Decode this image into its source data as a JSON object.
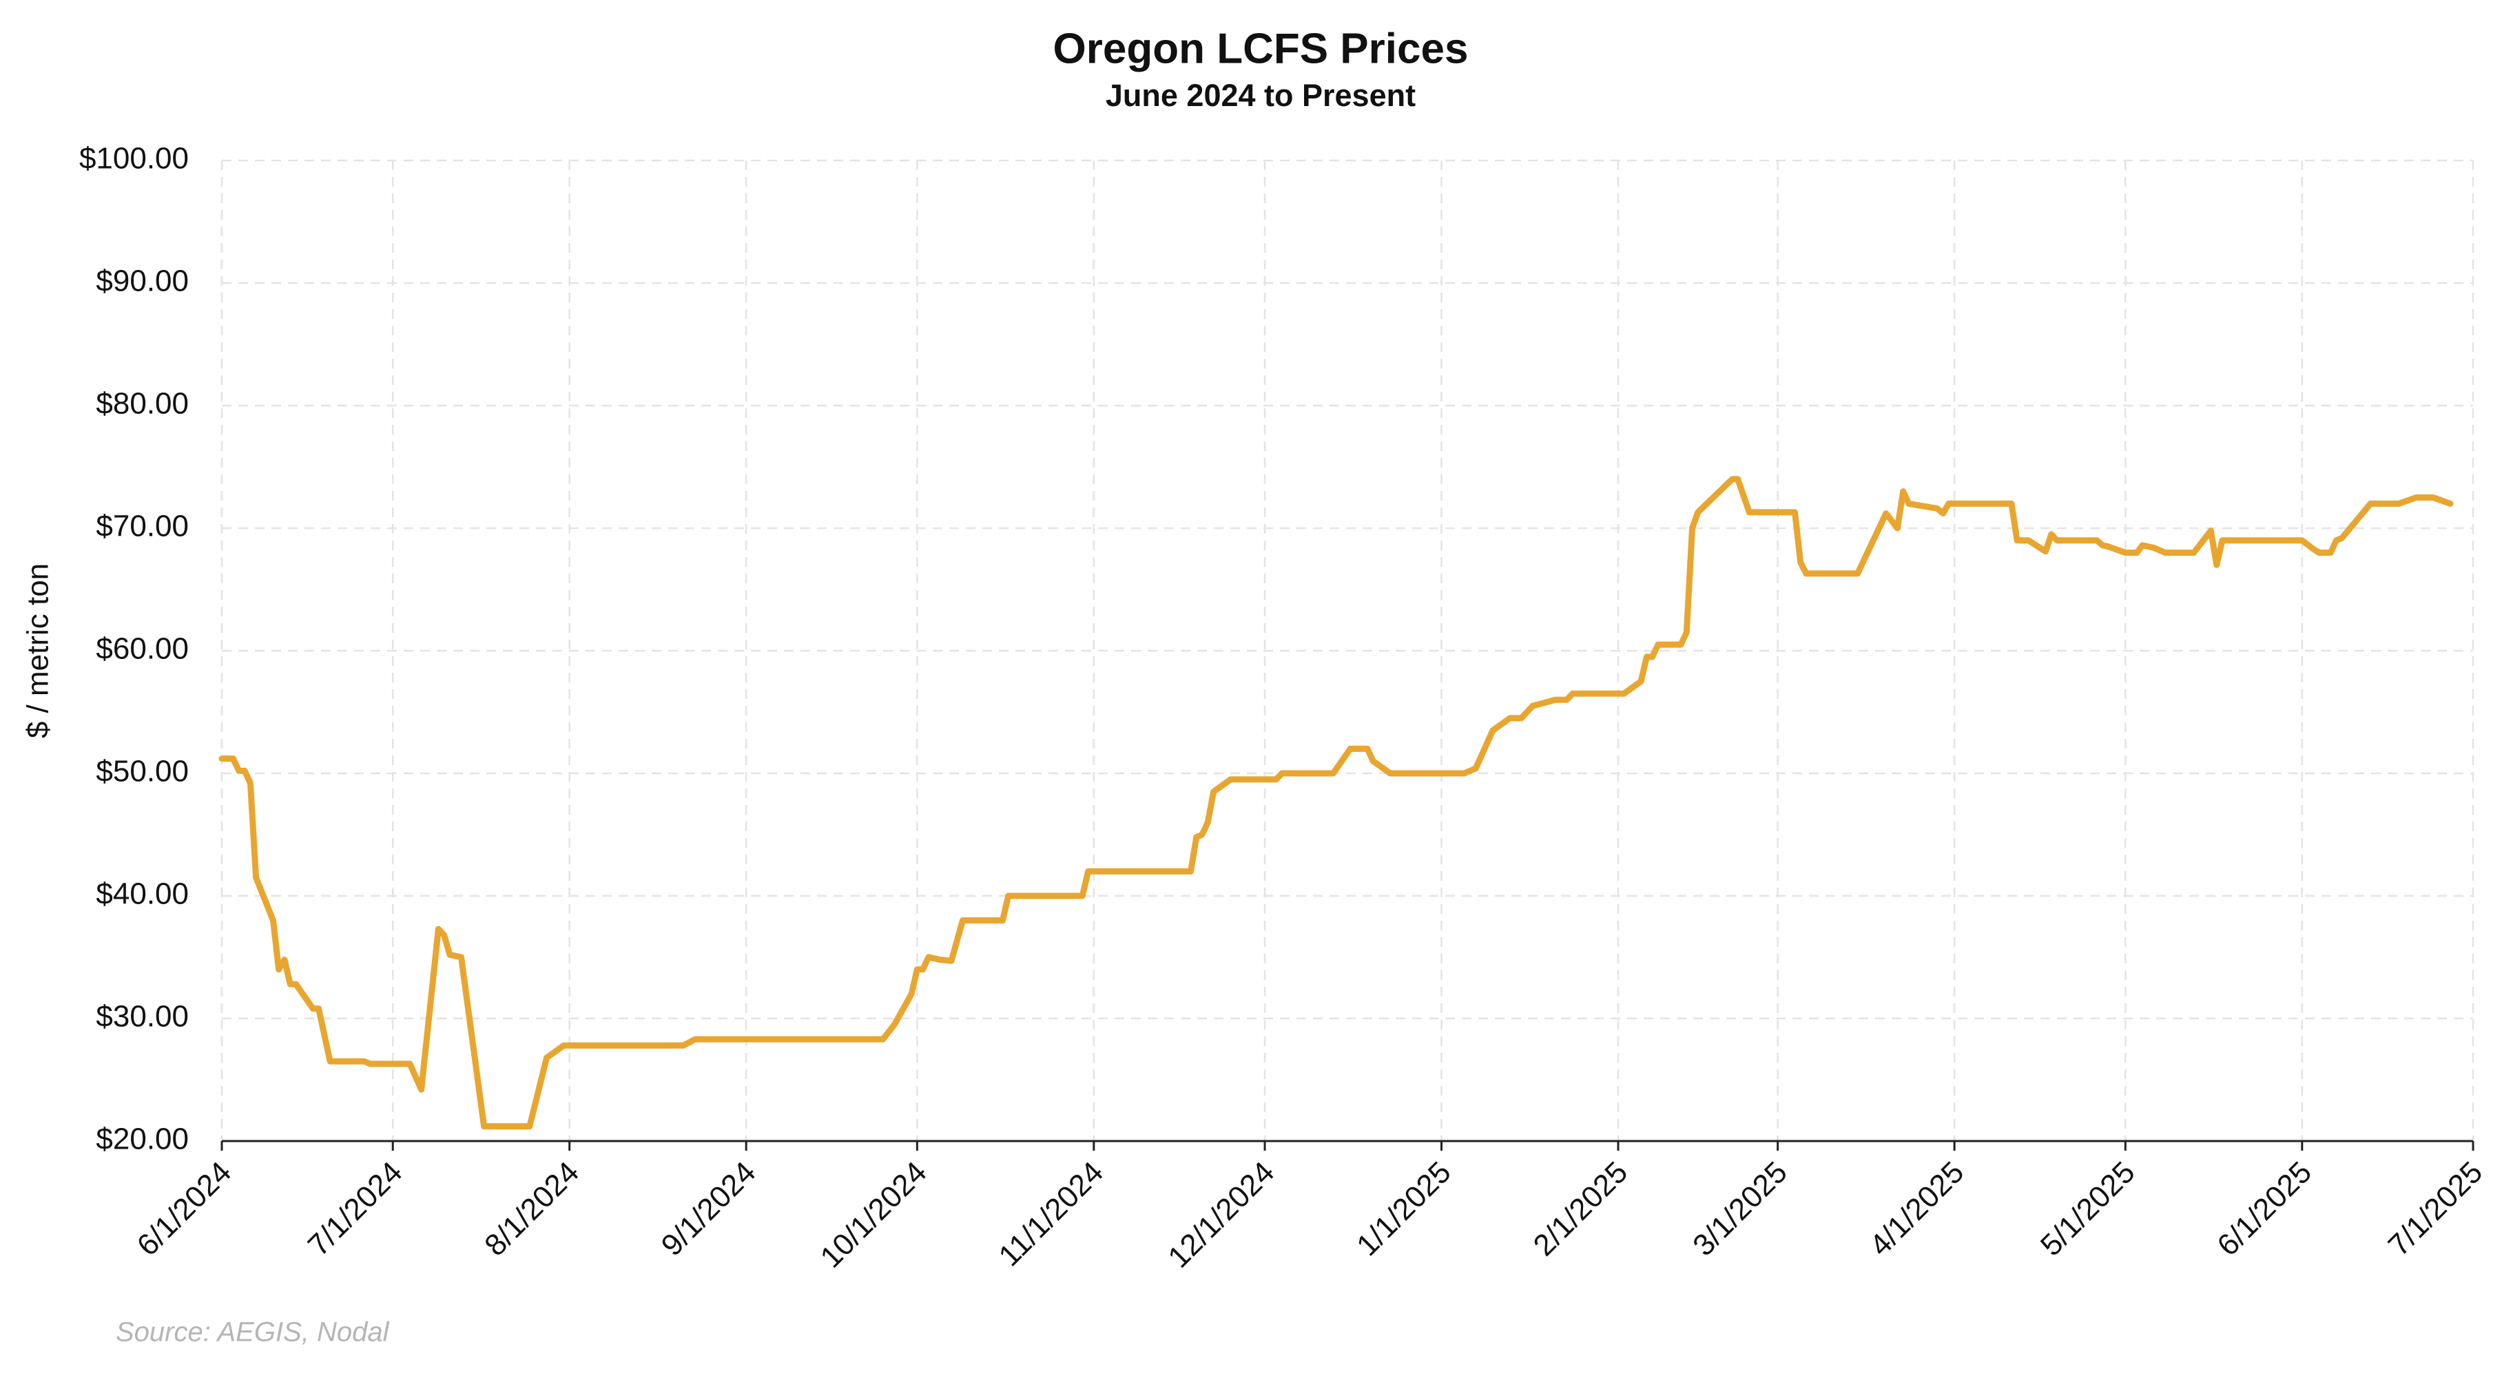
{
  "chart_data": {
    "type": "line",
    "title": "Oregon LCFS Prices",
    "subtitle": "June 2024 to Present",
    "y_label": "$ / metric ton",
    "source": "Source: AEGIS, Nodal",
    "color": "#e8a630",
    "grid": true,
    "xlim": [
      "6/1/2024",
      "7/1/2025"
    ],
    "xticks": [
      "6/1/2024",
      "7/1/2024",
      "8/1/2024",
      "9/1/2024",
      "10/1/2024",
      "11/1/2024",
      "12/1/2024",
      "1/1/2025",
      "2/1/2025",
      "3/1/2025",
      "4/1/2025",
      "5/1/2025",
      "6/1/2025",
      "7/1/2025"
    ],
    "ylim": [
      20,
      100
    ],
    "yticks": [
      {
        "value": 20,
        "label": "$20.00"
      },
      {
        "value": 30,
        "label": "$30.00"
      },
      {
        "value": 40,
        "label": "$40.00"
      },
      {
        "value": 50,
        "label": "$50.00"
      },
      {
        "value": 60,
        "label": "$60.00"
      },
      {
        "value": 70,
        "label": "$70.00"
      },
      {
        "value": 80,
        "label": "$80.00"
      },
      {
        "value": 90,
        "label": "$90.00"
      },
      {
        "value": 100,
        "label": "$100.00"
      }
    ],
    "x": [
      "6/1/2024",
      "6/3/2024",
      "6/4/2024",
      "6/5/2024",
      "6/6/2024",
      "6/7/2024",
      "6/10/2024",
      "6/11/2024",
      "6/12/2024",
      "6/13/2024",
      "6/14/2024",
      "6/17/2024",
      "6/18/2024",
      "6/20/2024",
      "6/26/2024",
      "6/27/2024",
      "7/4/2024",
      "7/6/2024",
      "7/9/2024",
      "7/10/2024",
      "7/11/2024",
      "7/13/2024",
      "7/17/2024",
      "7/25/2024",
      "7/28/2024",
      "7/31/2024",
      "8/21/2024",
      "8/23/2024",
      "9/25/2024",
      "9/27/2024",
      "9/30/2024",
      "10/1/2024",
      "10/2/2024",
      "10/3/2024",
      "10/5/2024",
      "10/7/2024",
      "10/9/2024",
      "10/16/2024",
      "10/17/2024",
      "10/30/2024",
      "10/31/2024",
      "11/18/2024",
      "11/19/2024",
      "11/20/2024",
      "11/21/2024",
      "11/22/2024",
      "11/25/2024",
      "12/3/2024",
      "12/4/2024",
      "12/13/2024",
      "12/16/2024",
      "12/19/2024",
      "12/20/2024",
      "12/23/2024",
      "1/5/2025",
      "1/7/2025",
      "1/10/2025",
      "1/13/2025",
      "1/15/2025",
      "1/17/2025",
      "1/21/2025",
      "1/23/2025",
      "1/24/2025",
      "2/2/2025",
      "2/5/2025",
      "2/6/2025",
      "2/7/2025",
      "2/8/2025",
      "2/12/2025",
      "2/13/2025",
      "2/14/2025",
      "2/15/2025",
      "2/21/2025",
      "2/22/2025",
      "2/24/2025",
      "3/4/2025",
      "3/5/2025",
      "3/6/2025",
      "3/15/2025",
      "3/20/2025",
      "3/22/2025",
      "3/23/2025",
      "3/24/2025",
      "3/29/2025",
      "3/30/2025",
      "3/31/2025",
      "4/11/2025",
      "4/12/2025",
      "4/14/2025",
      "4/17/2025",
      "4/18/2025",
      "4/19/2025",
      "4/26/2025",
      "4/27/2025",
      "4/28/2025",
      "5/1/2025",
      "5/3/2025",
      "5/4/2025",
      "5/6/2025",
      "5/8/2025",
      "5/13/2025",
      "5/16/2025",
      "5/17/2025",
      "5/18/2025",
      "6/1/2025",
      "6/3/2025",
      "6/4/2025",
      "6/6/2025",
      "6/7/2025",
      "6/8/2025",
      "6/13/2025",
      "6/18/2025",
      "6/21/2025",
      "6/24/2025",
      "6/27/2025"
    ],
    "values": [
      51.2,
      51.2,
      50.2,
      50.2,
      49.2,
      41.5,
      38,
      34,
      34.8,
      32.8,
      32.8,
      30.8,
      30.8,
      26.5,
      26.5,
      26.3,
      26.3,
      24.2,
      37.3,
      36.8,
      35.2,
      35,
      21.2,
      21.2,
      26.8,
      27.8,
      27.8,
      28.3,
      28.3,
      29.5,
      32,
      34,
      34,
      35,
      34.8,
      34.7,
      38,
      38,
      40,
      40,
      42,
      42,
      44.8,
      45,
      46,
      48.5,
      49.5,
      49.5,
      50,
      50,
      52,
      52,
      51,
      50,
      50,
      50.4,
      53.5,
      54.5,
      54.5,
      55.5,
      56,
      56,
      56.5,
      56.5,
      57.5,
      59.5,
      59.5,
      60.5,
      60.5,
      61.5,
      70,
      71.3,
      74,
      74,
      71.3,
      71.3,
      67.2,
      66.3,
      66.3,
      71.2,
      70,
      73,
      72,
      71.6,
      71.2,
      72,
      72,
      69,
      69,
      68.1,
      69.5,
      69,
      69,
      68.6,
      68.5,
      68,
      68,
      68.6,
      68.4,
      68,
      68,
      69.8,
      67,
      69,
      69,
      68.3,
      68,
      68,
      69,
      69.2,
      72,
      72,
      72.5,
      72.5,
      72
    ]
  }
}
